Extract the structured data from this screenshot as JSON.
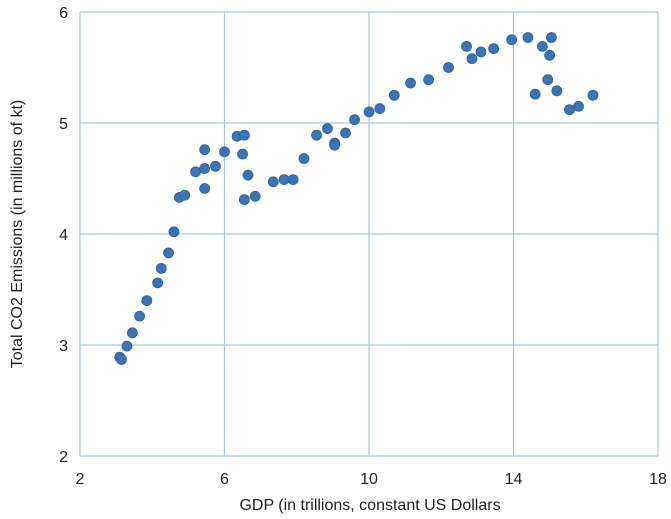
{
  "chart_data": {
    "type": "scatter",
    "title": "",
    "xlabel": "GDP (in trillions, constant US Dollars",
    "ylabel": "Total CO2 Emissions (in millions of kt)",
    "xlim": [
      2,
      18
    ],
    "ylim": [
      2,
      6
    ],
    "xticks": [
      2,
      6,
      10,
      14,
      18
    ],
    "yticks": [
      2,
      3,
      4,
      5,
      6
    ],
    "grid": true,
    "legend": "none",
    "marker_color": "#3a73b8",
    "grid_color": "#a9c6e8",
    "points": [
      {
        "x": 3.1,
        "y": 2.89
      },
      {
        "x": 3.15,
        "y": 2.87
      },
      {
        "x": 3.3,
        "y": 2.99
      },
      {
        "x": 3.45,
        "y": 3.11
      },
      {
        "x": 3.65,
        "y": 3.26
      },
      {
        "x": 3.85,
        "y": 3.4
      },
      {
        "x": 4.15,
        "y": 3.56
      },
      {
        "x": 4.25,
        "y": 3.69
      },
      {
        "x": 4.45,
        "y": 3.83
      },
      {
        "x": 4.6,
        "y": 4.02
      },
      {
        "x": 4.75,
        "y": 4.33
      },
      {
        "x": 4.9,
        "y": 4.35
      },
      {
        "x": 5.2,
        "y": 4.56
      },
      {
        "x": 5.45,
        "y": 4.59
      },
      {
        "x": 5.45,
        "y": 4.41
      },
      {
        "x": 5.45,
        "y": 4.76
      },
      {
        "x": 5.75,
        "y": 4.61
      },
      {
        "x": 6.0,
        "y": 4.74
      },
      {
        "x": 6.35,
        "y": 4.88
      },
      {
        "x": 6.55,
        "y": 4.89
      },
      {
        "x": 6.5,
        "y": 4.72
      },
      {
        "x": 6.65,
        "y": 4.53
      },
      {
        "x": 6.55,
        "y": 4.31
      },
      {
        "x": 6.85,
        "y": 4.34
      },
      {
        "x": 7.35,
        "y": 4.47
      },
      {
        "x": 7.65,
        "y": 4.49
      },
      {
        "x": 7.9,
        "y": 4.49
      },
      {
        "x": 8.2,
        "y": 4.68
      },
      {
        "x": 8.55,
        "y": 4.89
      },
      {
        "x": 8.85,
        "y": 4.95
      },
      {
        "x": 9.05,
        "y": 4.82
      },
      {
        "x": 9.05,
        "y": 4.8
      },
      {
        "x": 9.35,
        "y": 4.91
      },
      {
        "x": 9.6,
        "y": 5.03
      },
      {
        "x": 10.0,
        "y": 5.1
      },
      {
        "x": 10.3,
        "y": 5.13
      },
      {
        "x": 10.7,
        "y": 5.25
      },
      {
        "x": 11.15,
        "y": 5.36
      },
      {
        "x": 11.65,
        "y": 5.39
      },
      {
        "x": 12.2,
        "y": 5.5
      },
      {
        "x": 12.7,
        "y": 5.69
      },
      {
        "x": 12.85,
        "y": 5.58
      },
      {
        "x": 13.1,
        "y": 5.64
      },
      {
        "x": 13.45,
        "y": 5.67
      },
      {
        "x": 13.95,
        "y": 5.75
      },
      {
        "x": 14.4,
        "y": 5.77
      },
      {
        "x": 14.8,
        "y": 5.69
      },
      {
        "x": 15.05,
        "y": 5.77
      },
      {
        "x": 15.0,
        "y": 5.61
      },
      {
        "x": 14.95,
        "y": 5.39
      },
      {
        "x": 14.6,
        "y": 5.26
      },
      {
        "x": 15.2,
        "y": 5.29
      },
      {
        "x": 15.55,
        "y": 5.12
      },
      {
        "x": 15.8,
        "y": 5.15
      },
      {
        "x": 16.2,
        "y": 5.25
      }
    ]
  }
}
